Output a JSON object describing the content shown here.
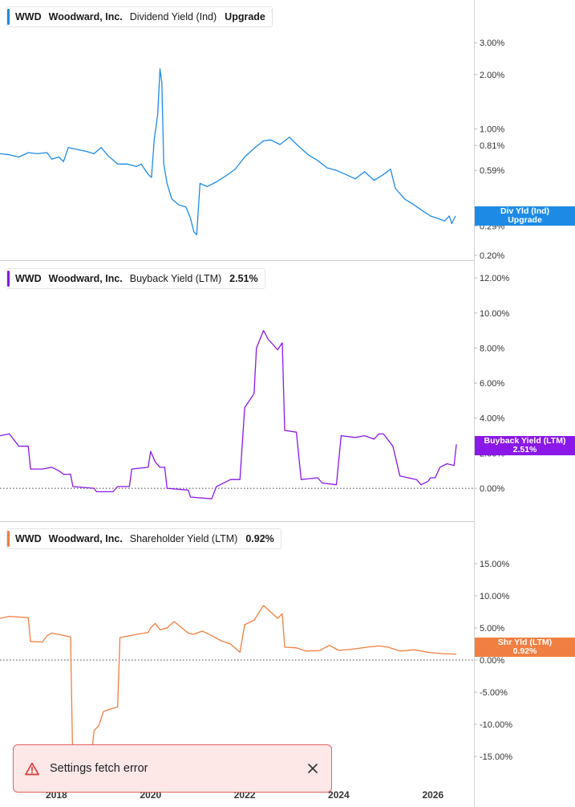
{
  "colors": {
    "dividend": "#1d8be6",
    "buyback": "#8a18e8",
    "shareholder": "#f07f41",
    "toast_border": "#e26363",
    "warn": "#d83b3b"
  },
  "x_axis": {
    "ticks": [
      {
        "label": "2018",
        "year": 2018
      },
      {
        "label": "2020",
        "year": 2020
      },
      {
        "label": "2022",
        "year": 2022
      },
      {
        "label": "2024",
        "year": 2024
      },
      {
        "label": "2026",
        "year": 2026
      }
    ],
    "range": [
      2016.8,
      2026.6
    ]
  },
  "panels": [
    {
      "id": "dividend",
      "legend": {
        "ticker": "WWD",
        "company": "Woodward, Inc.",
        "metric": "Dividend Yield (Ind)",
        "value": "Upgrade"
      },
      "tag": {
        "line1": "Div Yld (Ind)",
        "line2": "Upgrade"
      },
      "scale": "log",
      "ylim": [
        0.2,
        4.3
      ],
      "ticks": [
        {
          "label": "3.00%",
          "v": 3.0
        },
        {
          "label": "2.00%",
          "v": 2.0
        },
        {
          "label": "1.00%",
          "v": 1.0
        },
        {
          "label": "0.81%",
          "v": 0.81
        },
        {
          "label": "0.59%",
          "v": 0.59
        },
        {
          "label": "0.29%",
          "v": 0.29
        },
        {
          "label": "0.20%",
          "v": 0.2
        }
      ],
      "zero_line": false
    },
    {
      "id": "buyback",
      "legend": {
        "ticker": "WWD",
        "company": "Woodward, Inc.",
        "metric": "Buyback Yield (LTM)",
        "value": "2.51%"
      },
      "tag": {
        "line1": "Buyback Yield (LTM)",
        "line2": "2.51%"
      },
      "scale": "linear",
      "ylim": [
        -1.6,
        12.6
      ],
      "ticks": [
        {
          "label": "12.00%",
          "v": 12
        },
        {
          "label": "10.00%",
          "v": 10
        },
        {
          "label": "8.00%",
          "v": 8
        },
        {
          "label": "6.00%",
          "v": 6
        },
        {
          "label": "4.00%",
          "v": 4
        },
        {
          "label": "2.00%",
          "v": 2
        },
        {
          "label": "0.00%",
          "v": 0
        }
      ],
      "zero_line": true
    },
    {
      "id": "shareholder",
      "legend": {
        "ticker": "WWD",
        "company": "Woodward, Inc.",
        "metric": "Shareholder Yield (LTM)",
        "value": "0.92%"
      },
      "tag": {
        "line1": "Shr Yld (LTM)",
        "line2": "0.92%"
      },
      "scale": "linear",
      "ylim": [
        -18.5,
        19.0
      ],
      "ticks": [
        {
          "label": "15.00%",
          "v": 15
        },
        {
          "label": "10.00%",
          "v": 10
        },
        {
          "label": "5.00%",
          "v": 5
        },
        {
          "label": "0.00%",
          "v": 0
        },
        {
          "label": "-5.00%",
          "v": -5
        },
        {
          "label": "-10.00%",
          "v": -10
        },
        {
          "label": "-15.00%",
          "v": -15
        }
      ],
      "zero_line": true
    }
  ],
  "chart_data": [
    {
      "type": "line",
      "scale": "log",
      "ylim": [
        0.2,
        4.3
      ],
      "series": [
        {
          "name": "Dividend Yield (Ind)",
          "points": [
            [
              2016.8,
              0.73
            ],
            [
              2017.0,
              0.72
            ],
            [
              2017.2,
              0.7
            ],
            [
              2017.4,
              0.74
            ],
            [
              2017.6,
              0.73
            ],
            [
              2017.8,
              0.74
            ],
            [
              2017.9,
              0.68
            ],
            [
              2018.05,
              0.7
            ],
            [
              2018.15,
              0.66
            ],
            [
              2018.25,
              0.79
            ],
            [
              2018.45,
              0.77
            ],
            [
              2018.65,
              0.75
            ],
            [
              2018.8,
              0.73
            ],
            [
              2018.95,
              0.79
            ],
            [
              2019.1,
              0.71
            ],
            [
              2019.3,
              0.64
            ],
            [
              2019.5,
              0.64
            ],
            [
              2019.7,
              0.62
            ],
            [
              2019.8,
              0.64
            ],
            [
              2019.95,
              0.56
            ],
            [
              2020.02,
              0.54
            ],
            [
              2020.08,
              0.88
            ],
            [
              2020.15,
              1.2
            ],
            [
              2020.2,
              2.15
            ],
            [
              2020.24,
              1.8
            ],
            [
              2020.28,
              0.64
            ],
            [
              2020.35,
              0.5
            ],
            [
              2020.45,
              0.41
            ],
            [
              2020.6,
              0.38
            ],
            [
              2020.75,
              0.37
            ],
            [
              2020.85,
              0.32
            ],
            [
              2020.92,
              0.27
            ],
            [
              2020.98,
              0.26
            ],
            [
              2021.05,
              0.5
            ],
            [
              2021.2,
              0.48
            ],
            [
              2021.4,
              0.51
            ],
            [
              2021.6,
              0.55
            ],
            [
              2021.8,
              0.6
            ],
            [
              2022.0,
              0.7
            ],
            [
              2022.2,
              0.78
            ],
            [
              2022.4,
              0.86
            ],
            [
              2022.55,
              0.87
            ],
            [
              2022.75,
              0.82
            ],
            [
              2022.95,
              0.9
            ],
            [
              2023.15,
              0.8
            ],
            [
              2023.35,
              0.72
            ],
            [
              2023.55,
              0.67
            ],
            [
              2023.75,
              0.61
            ],
            [
              2023.95,
              0.59
            ],
            [
              2024.15,
              0.56
            ],
            [
              2024.35,
              0.53
            ],
            [
              2024.55,
              0.58
            ],
            [
              2024.75,
              0.52
            ],
            [
              2024.95,
              0.56
            ],
            [
              2025.1,
              0.6
            ],
            [
              2025.2,
              0.47
            ],
            [
              2025.4,
              0.41
            ],
            [
              2025.6,
              0.38
            ],
            [
              2025.8,
              0.35
            ],
            [
              2025.95,
              0.33
            ],
            [
              2026.1,
              0.32
            ],
            [
              2026.25,
              0.31
            ],
            [
              2026.35,
              0.33
            ],
            [
              2026.4,
              0.3
            ],
            [
              2026.48,
              0.33
            ]
          ]
        }
      ]
    },
    {
      "type": "line",
      "ylim": [
        -1.6,
        12.6
      ],
      "series": [
        {
          "name": "Buyback Yield (LTM)",
          "points": [
            [
              2016.8,
              3.0
            ],
            [
              2017.0,
              3.1
            ],
            [
              2017.2,
              2.4
            ],
            [
              2017.4,
              2.4
            ],
            [
              2017.45,
              1.1
            ],
            [
              2017.7,
              1.1
            ],
            [
              2017.9,
              1.2
            ],
            [
              2018.05,
              1.0
            ],
            [
              2018.15,
              0.8
            ],
            [
              2018.3,
              0.8
            ],
            [
              2018.35,
              0.1
            ],
            [
              2018.8,
              0.0
            ],
            [
              2018.85,
              -0.2
            ],
            [
              2019.2,
              -0.2
            ],
            [
              2019.3,
              0.1
            ],
            [
              2019.55,
              0.1
            ],
            [
              2019.6,
              1.1
            ],
            [
              2019.95,
              1.2
            ],
            [
              2020.0,
              2.1
            ],
            [
              2020.1,
              1.5
            ],
            [
              2020.2,
              1.2
            ],
            [
              2020.3,
              1.2
            ],
            [
              2020.35,
              0.0
            ],
            [
              2020.8,
              -0.1
            ],
            [
              2020.85,
              -0.5
            ],
            [
              2021.3,
              -0.6
            ],
            [
              2021.4,
              0.1
            ],
            [
              2021.7,
              0.5
            ],
            [
              2021.9,
              0.5
            ],
            [
              2022.0,
              4.6
            ],
            [
              2022.1,
              5.0
            ],
            [
              2022.2,
              5.4
            ],
            [
              2022.25,
              8.0
            ],
            [
              2022.4,
              9.0
            ],
            [
              2022.5,
              8.5
            ],
            [
              2022.7,
              7.9
            ],
            [
              2022.8,
              8.3
            ],
            [
              2022.85,
              3.3
            ],
            [
              2023.1,
              3.2
            ],
            [
              2023.2,
              0.5
            ],
            [
              2023.55,
              0.6
            ],
            [
              2023.65,
              0.3
            ],
            [
              2023.95,
              0.2
            ],
            [
              2024.05,
              3.0
            ],
            [
              2024.35,
              2.9
            ],
            [
              2024.55,
              3.0
            ],
            [
              2024.75,
              2.8
            ],
            [
              2024.85,
              3.1
            ],
            [
              2024.95,
              3.1
            ],
            [
              2025.15,
              2.4
            ],
            [
              2025.3,
              0.7
            ],
            [
              2025.65,
              0.5
            ],
            [
              2025.75,
              0.2
            ],
            [
              2025.9,
              0.4
            ],
            [
              2025.95,
              0.6
            ],
            [
              2026.05,
              0.6
            ],
            [
              2026.15,
              1.2
            ],
            [
              2026.3,
              1.4
            ],
            [
              2026.45,
              1.3
            ],
            [
              2026.5,
              2.51
            ]
          ]
        }
      ]
    },
    {
      "type": "line",
      "ylim": [
        -18.5,
        19.0
      ],
      "series": [
        {
          "name": "Shareholder Yield (LTM)",
          "points": [
            [
              2016.8,
              6.5
            ],
            [
              2017.0,
              6.8
            ],
            [
              2017.4,
              6.6
            ],
            [
              2017.45,
              2.9
            ],
            [
              2017.7,
              2.8
            ],
            [
              2017.8,
              3.8
            ],
            [
              2017.9,
              4.2
            ],
            [
              2018.1,
              3.9
            ],
            [
              2018.3,
              3.6
            ],
            [
              2018.35,
              -17.0
            ],
            [
              2018.7,
              -18.0
            ],
            [
              2018.8,
              -11.0
            ],
            [
              2018.9,
              -10.2
            ],
            [
              2019.0,
              -8.0
            ],
            [
              2019.2,
              -7.5
            ],
            [
              2019.3,
              -7.3
            ],
            [
              2019.35,
              3.5
            ],
            [
              2019.7,
              4.0
            ],
            [
              2019.95,
              4.3
            ],
            [
              2020.0,
              5.0
            ],
            [
              2020.1,
              5.7
            ],
            [
              2020.2,
              4.7
            ],
            [
              2020.35,
              5.0
            ],
            [
              2020.5,
              6.0
            ],
            [
              2020.8,
              4.2
            ],
            [
              2020.9,
              4.0
            ],
            [
              2021.1,
              4.5
            ],
            [
              2021.3,
              3.8
            ],
            [
              2021.5,
              3.0
            ],
            [
              2021.7,
              2.5
            ],
            [
              2021.9,
              1.2
            ],
            [
              2022.0,
              5.5
            ],
            [
              2022.2,
              6.2
            ],
            [
              2022.4,
              8.5
            ],
            [
              2022.55,
              7.5
            ],
            [
              2022.7,
              6.5
            ],
            [
              2022.8,
              7.2
            ],
            [
              2022.85,
              2.0
            ],
            [
              2023.1,
              1.9
            ],
            [
              2023.3,
              1.4
            ],
            [
              2023.6,
              1.5
            ],
            [
              2023.8,
              2.3
            ],
            [
              2024.0,
              1.5
            ],
            [
              2024.3,
              1.7
            ],
            [
              2024.6,
              2.0
            ],
            [
              2024.85,
              2.2
            ],
            [
              2025.05,
              2.0
            ],
            [
              2025.3,
              1.4
            ],
            [
              2025.6,
              1.6
            ],
            [
              2025.9,
              1.2
            ],
            [
              2026.2,
              1.0
            ],
            [
              2026.5,
              0.92
            ]
          ]
        }
      ]
    }
  ],
  "toast": {
    "message": "Settings fetch error"
  }
}
